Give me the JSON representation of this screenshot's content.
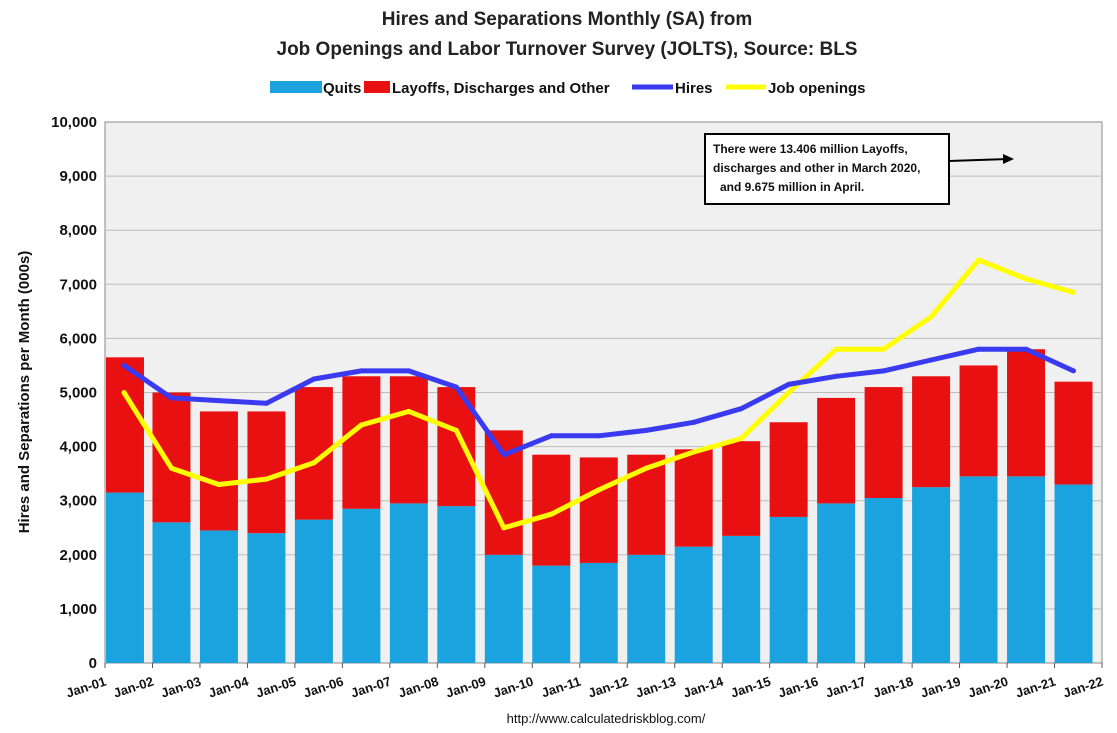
{
  "chart_data": {
    "type": "bar",
    "title": "Hires and Separations Monthly (SA) from",
    "subtitle": "Job Openings and Labor Turnover Survey (JOLTS), Source: BLS",
    "ylabel": "Hires and Separations per Month (000s)",
    "xlabel": "",
    "ylim": [
      0,
      10000
    ],
    "yticks": [
      "0",
      "1,000",
      "2,000",
      "3,000",
      "4,000",
      "5,000",
      "6,000",
      "7,000",
      "8,000",
      "9,000",
      "10,000"
    ],
    "xticks": [
      "Jan-01",
      "Jan-02",
      "Jan-03",
      "Jan-04",
      "Jan-05",
      "Jan-06",
      "Jan-07",
      "Jan-08",
      "Jan-09",
      "Jan-10",
      "Jan-11",
      "Jan-12",
      "Jan-13",
      "Jan-14",
      "Jan-15",
      "Jan-16",
      "Jan-17",
      "Jan-18",
      "Jan-19",
      "Jan-20",
      "Jan-21",
      "Jan-22"
    ],
    "grid": true,
    "legend_position": "top",
    "stacked": true,
    "x_period": "annual (January of each year)",
    "series": [
      {
        "name": "Quits",
        "kind": "bar",
        "color": "#1aa3df",
        "values": [
          3150,
          2600,
          2450,
          2400,
          2650,
          2850,
          2950,
          2900,
          2000,
          1800,
          1850,
          2000,
          2150,
          2350,
          2700,
          2950,
          3050,
          3250,
          3450,
          3450,
          3300
        ]
      },
      {
        "name": "Layoffs, Discharges and Other",
        "kind": "bar",
        "color": "#e81010",
        "values": [
          2500,
          2400,
          2200,
          2250,
          2450,
          2450,
          2350,
          2200,
          2300,
          2050,
          1950,
          1850,
          1800,
          1750,
          1750,
          1950,
          2050,
          2050,
          2050,
          2350,
          1900
        ]
      },
      {
        "name": "Hires",
        "kind": "line",
        "color": "#3a3af0",
        "values": [
          5500,
          4900,
          4850,
          4800,
          5250,
          5400,
          5400,
          5100,
          3850,
          4200,
          4200,
          4300,
          4450,
          4700,
          5150,
          5300,
          5400,
          5600,
          5800,
          5800,
          5400
        ]
      },
      {
        "name": "Job openings",
        "kind": "line",
        "color": "#ffff00",
        "values": [
          5000,
          3600,
          3300,
          3400,
          3700,
          4400,
          4650,
          4300,
          2500,
          2750,
          3200,
          3600,
          3900,
          4150,
          5000,
          5800,
          5800,
          6400,
          7450,
          7100,
          6850
        ]
      }
    ],
    "annotations": [
      {
        "text_lines": [
          "There were 13.406 million Layoffs,",
          "discharges and other in March 2020,",
          "and 9.675 million in April."
        ]
      }
    ]
  },
  "colors": {
    "quits": "#1aa3df",
    "layoffs": "#e81010",
    "hires": "#3a3af0",
    "openings": "#ffff00",
    "plot_bg": "#f0f0f0"
  },
  "source": "http://www.calculatedriskblog.com/"
}
